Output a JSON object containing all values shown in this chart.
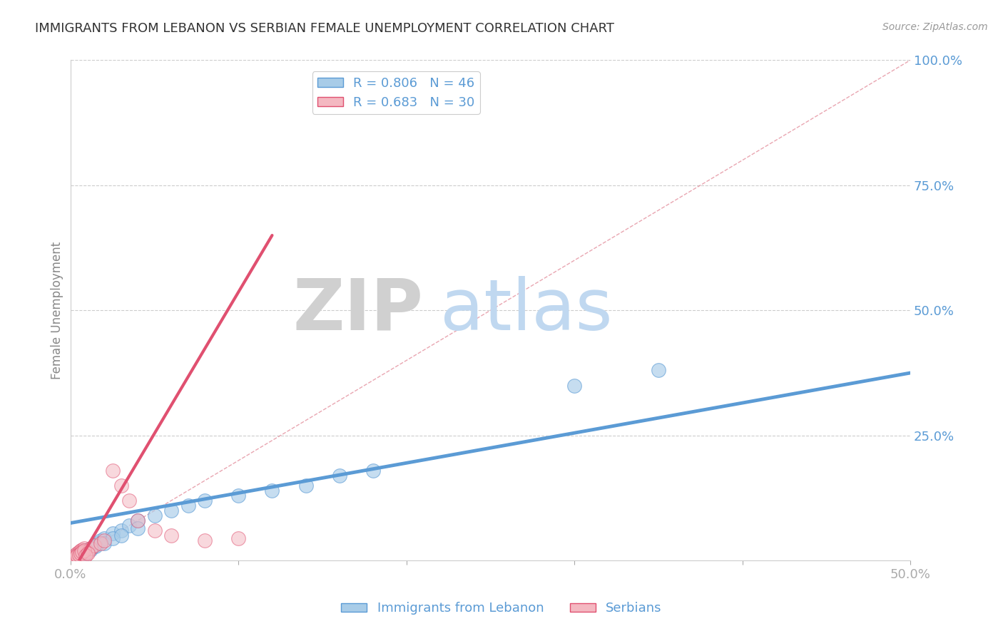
{
  "title": "IMMIGRANTS FROM LEBANON VS SERBIAN FEMALE UNEMPLOYMENT CORRELATION CHART",
  "source": "Source: ZipAtlas.com",
  "ylabel": "Female Unemployment",
  "xlim": [
    0.0,
    0.5
  ],
  "ylim": [
    0.0,
    1.0
  ],
  "xticks": [
    0.0,
    0.1,
    0.2,
    0.3,
    0.4,
    0.5
  ],
  "xticklabels": [
    "0.0%",
    "",
    "",
    "",
    "",
    "50.0%"
  ],
  "yticks": [
    0.0,
    0.25,
    0.5,
    0.75,
    1.0
  ],
  "yticklabels": [
    "",
    "25.0%",
    "50.0%",
    "75.0%",
    "100.0%"
  ],
  "legend_items": [
    {
      "label": "R = 0.806   N = 46",
      "color": "#a8cce8"
    },
    {
      "label": "R = 0.683   N = 30",
      "color": "#f4b8c1"
    }
  ],
  "blue_scatter": [
    [
      0.001,
      0.005
    ],
    [
      0.002,
      0.008
    ],
    [
      0.003,
      0.01
    ],
    [
      0.004,
      0.012
    ],
    [
      0.005,
      0.008
    ],
    [
      0.006,
      0.015
    ],
    [
      0.007,
      0.018
    ],
    [
      0.008,
      0.02
    ],
    [
      0.009,
      0.015
    ],
    [
      0.01,
      0.022
    ],
    [
      0.012,
      0.025
    ],
    [
      0.014,
      0.03
    ],
    [
      0.016,
      0.035
    ],
    [
      0.018,
      0.04
    ],
    [
      0.02,
      0.045
    ],
    [
      0.025,
      0.055
    ],
    [
      0.03,
      0.06
    ],
    [
      0.035,
      0.07
    ],
    [
      0.04,
      0.08
    ],
    [
      0.05,
      0.09
    ],
    [
      0.06,
      0.1
    ],
    [
      0.07,
      0.11
    ],
    [
      0.08,
      0.12
    ],
    [
      0.1,
      0.13
    ],
    [
      0.12,
      0.14
    ],
    [
      0.14,
      0.15
    ],
    [
      0.16,
      0.17
    ],
    [
      0.18,
      0.18
    ],
    [
      0.003,
      0.005
    ],
    [
      0.004,
      0.007
    ],
    [
      0.005,
      0.01
    ],
    [
      0.006,
      0.012
    ],
    [
      0.007,
      0.015
    ],
    [
      0.008,
      0.012
    ],
    [
      0.009,
      0.018
    ],
    [
      0.01,
      0.02
    ],
    [
      0.012,
      0.022
    ],
    [
      0.015,
      0.028
    ],
    [
      0.02,
      0.035
    ],
    [
      0.025,
      0.045
    ],
    [
      0.03,
      0.05
    ],
    [
      0.04,
      0.065
    ],
    [
      0.3,
      0.35
    ],
    [
      0.35,
      0.38
    ],
    [
      0.002,
      0.003
    ],
    [
      0.001,
      0.002
    ]
  ],
  "pink_scatter": [
    [
      0.001,
      0.005
    ],
    [
      0.002,
      0.008
    ],
    [
      0.003,
      0.012
    ],
    [
      0.004,
      0.015
    ],
    [
      0.005,
      0.018
    ],
    [
      0.006,
      0.02
    ],
    [
      0.007,
      0.022
    ],
    [
      0.008,
      0.025
    ],
    [
      0.009,
      0.015
    ],
    [
      0.01,
      0.018
    ],
    [
      0.012,
      0.025
    ],
    [
      0.014,
      0.03
    ],
    [
      0.018,
      0.035
    ],
    [
      0.02,
      0.04
    ],
    [
      0.025,
      0.18
    ],
    [
      0.03,
      0.15
    ],
    [
      0.035,
      0.12
    ],
    [
      0.04,
      0.08
    ],
    [
      0.05,
      0.06
    ],
    [
      0.06,
      0.05
    ],
    [
      0.08,
      0.04
    ],
    [
      0.1,
      0.045
    ],
    [
      0.003,
      0.008
    ],
    [
      0.004,
      0.01
    ],
    [
      0.005,
      0.012
    ],
    [
      0.006,
      0.015
    ],
    [
      0.007,
      0.018
    ],
    [
      0.008,
      0.02
    ],
    [
      0.009,
      0.01
    ],
    [
      0.01,
      0.015
    ]
  ],
  "blue_line": {
    "x0": 0.0,
    "y0": 0.075,
    "x1": 0.5,
    "y1": 0.375
  },
  "pink_line": {
    "x0": 0.005,
    "y0": 0.0,
    "x1": 0.12,
    "y1": 0.65
  },
  "ref_line": {
    "x0": 0.0,
    "y0": 0.0,
    "x1": 0.5,
    "y1": 1.0
  },
  "blue_color": "#a8cce8",
  "blue_color_dark": "#5b9bd5",
  "pink_color": "#f4b8c1",
  "pink_color_dark": "#e05070",
  "ref_line_color": "#e08090",
  "bg_color": "#ffffff",
  "grid_color": "#cccccc",
  "title_color": "#333333",
  "axis_color": "#5b9bd5",
  "zip_watermark_color": "#d0d0d0",
  "atlas_watermark_color": "#c0d8f0"
}
